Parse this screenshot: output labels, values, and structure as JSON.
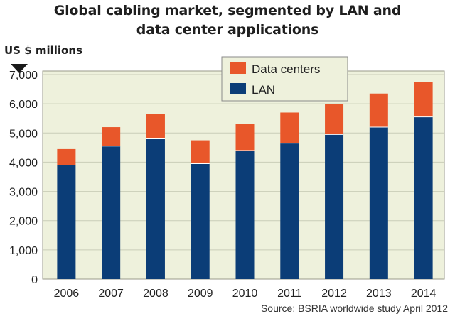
{
  "title_line1": "Global cabling market, segmented by LAN and",
  "title_line2": "data center applications",
  "unit_label": "US $ millions",
  "source": "Source: BSRIA worldwide study April 2012",
  "colors": {
    "lan": "#0b3d77",
    "data_centers": "#e8572a",
    "plot_bg": "#eef1dc",
    "grid": "#c9cdb8"
  },
  "chart_data": {
    "type": "bar",
    "stacked": true,
    "categories": [
      "2006",
      "2007",
      "2008",
      "2009",
      "2010",
      "2011",
      "2012",
      "2013",
      "2014"
    ],
    "series": [
      {
        "name": "LAN",
        "values": [
          3900,
          4550,
          4800,
          3950,
          4400,
          4650,
          4950,
          5200,
          5550
        ]
      },
      {
        "name": "Data centers",
        "values": [
          550,
          650,
          850,
          800,
          900,
          1050,
          1050,
          1150,
          1200
        ]
      }
    ],
    "ylim": [
      0,
      7000
    ],
    "yticks": [
      0,
      1000,
      2000,
      3000,
      4000,
      5000,
      6000,
      7000
    ],
    "ytick_labels": [
      "0",
      "1,000",
      "2,000",
      "3,000",
      "4,000",
      "5,000",
      "6,000",
      "7,000"
    ],
    "grid": true,
    "legend_position": "top-center"
  }
}
